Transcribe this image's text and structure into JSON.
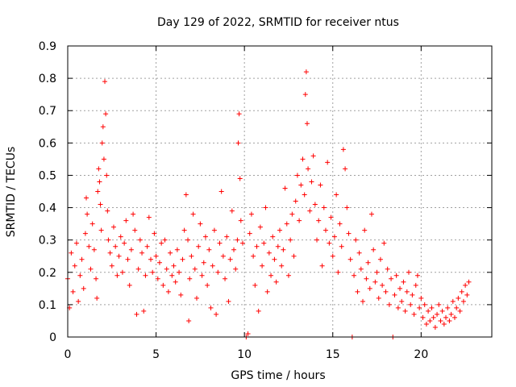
{
  "chart_data": {
    "type": "scatter",
    "title": "Day 129 of 2022, SRMTID for receiver ntus",
    "xlabel": "GPS time / hours",
    "ylabel": "SRMTID / TECUs",
    "xlim": [
      0,
      24
    ],
    "ylim": [
      0,
      0.9
    ],
    "xticks": [
      0,
      5,
      10,
      15,
      20
    ],
    "yticks": [
      0,
      0.1,
      0.2,
      0.3,
      0.4,
      0.5,
      0.6,
      0.7,
      0.8,
      0.9
    ],
    "xtick_labels": [
      "0",
      "5",
      "10",
      "15",
      "20"
    ],
    "ytick_labels": [
      "0",
      "0.1",
      "0.2",
      "0.3",
      "0.4",
      "0.5",
      "0.6",
      "0.7",
      "0.8",
      "0.9"
    ],
    "grid": true,
    "marker": "+",
    "color": "#ff0000",
    "series": [
      {
        "name": "SRMTID",
        "points": [
          [
            0.0,
            0.18
          ],
          [
            0.1,
            0.09
          ],
          [
            0.2,
            0.26
          ],
          [
            0.3,
            0.14
          ],
          [
            0.4,
            0.22
          ],
          [
            0.5,
            0.29
          ],
          [
            0.6,
            0.11
          ],
          [
            0.7,
            0.19
          ],
          [
            0.8,
            0.24
          ],
          [
            0.9,
            0.15
          ],
          [
            1.0,
            0.32
          ],
          [
            1.05,
            0.43
          ],
          [
            1.1,
            0.38
          ],
          [
            1.2,
            0.28
          ],
          [
            1.3,
            0.21
          ],
          [
            1.4,
            0.35
          ],
          [
            1.5,
            0.27
          ],
          [
            1.6,
            0.18
          ],
          [
            1.65,
            0.12
          ],
          [
            1.7,
            0.45
          ],
          [
            1.75,
            0.52
          ],
          [
            1.8,
            0.48
          ],
          [
            1.85,
            0.41
          ],
          [
            1.9,
            0.33
          ],
          [
            1.95,
            0.6
          ],
          [
            2.0,
            0.65
          ],
          [
            2.05,
            0.55
          ],
          [
            2.1,
            0.79
          ],
          [
            2.15,
            0.69
          ],
          [
            2.2,
            0.5
          ],
          [
            2.25,
            0.39
          ],
          [
            2.3,
            0.3
          ],
          [
            2.4,
            0.26
          ],
          [
            2.5,
            0.22
          ],
          [
            2.6,
            0.34
          ],
          [
            2.7,
            0.28
          ],
          [
            2.8,
            0.19
          ],
          [
            2.9,
            0.25
          ],
          [
            3.0,
            0.31
          ],
          [
            3.1,
            0.2
          ],
          [
            3.2,
            0.29
          ],
          [
            3.3,
            0.36
          ],
          [
            3.4,
            0.24
          ],
          [
            3.5,
            0.16
          ],
          [
            3.6,
            0.27
          ],
          [
            3.7,
            0.38
          ],
          [
            3.8,
            0.33
          ],
          [
            3.9,
            0.07
          ],
          [
            4.0,
            0.21
          ],
          [
            4.1,
            0.3
          ],
          [
            4.2,
            0.26
          ],
          [
            4.3,
            0.08
          ],
          [
            4.4,
            0.19
          ],
          [
            4.5,
            0.28
          ],
          [
            4.6,
            0.37
          ],
          [
            4.7,
            0.24
          ],
          [
            4.8,
            0.2
          ],
          [
            4.9,
            0.32
          ],
          [
            5.0,
            0.25
          ],
          [
            5.1,
            0.18
          ],
          [
            5.2,
            0.23
          ],
          [
            5.3,
            0.29
          ],
          [
            5.4,
            0.16
          ],
          [
            5.5,
            0.3
          ],
          [
            5.6,
            0.21
          ],
          [
            5.7,
            0.14
          ],
          [
            5.8,
            0.26
          ],
          [
            5.9,
            0.19
          ],
          [
            6.0,
            0.22
          ],
          [
            6.1,
            0.17
          ],
          [
            6.2,
            0.27
          ],
          [
            6.3,
            0.2
          ],
          [
            6.4,
            0.13
          ],
          [
            6.5,
            0.24
          ],
          [
            6.6,
            0.33
          ],
          [
            6.7,
            0.44
          ],
          [
            6.8,
            0.3
          ],
          [
            6.85,
            0.05
          ],
          [
            6.9,
            0.18
          ],
          [
            7.0,
            0.25
          ],
          [
            7.1,
            0.38
          ],
          [
            7.2,
            0.21
          ],
          [
            7.3,
            0.12
          ],
          [
            7.4,
            0.28
          ],
          [
            7.5,
            0.35
          ],
          [
            7.6,
            0.19
          ],
          [
            7.7,
            0.23
          ],
          [
            7.8,
            0.31
          ],
          [
            7.9,
            0.16
          ],
          [
            8.0,
            0.27
          ],
          [
            8.1,
            0.09
          ],
          [
            8.2,
            0.22
          ],
          [
            8.3,
            0.33
          ],
          [
            8.4,
            0.07
          ],
          [
            8.5,
            0.2
          ],
          [
            8.6,
            0.29
          ],
          [
            8.7,
            0.45
          ],
          [
            8.8,
            0.25
          ],
          [
            8.9,
            0.18
          ],
          [
            9.0,
            0.31
          ],
          [
            9.1,
            0.11
          ],
          [
            9.2,
            0.24
          ],
          [
            9.3,
            0.39
          ],
          [
            9.4,
            0.27
          ],
          [
            9.5,
            0.21
          ],
          [
            9.6,
            0.3
          ],
          [
            9.65,
            0.6
          ],
          [
            9.7,
            0.69
          ],
          [
            9.75,
            0.49
          ],
          [
            9.8,
            0.36
          ],
          [
            9.9,
            0.29
          ],
          [
            10.1,
            0.0
          ],
          [
            10.2,
            0.01
          ],
          [
            10.3,
            0.32
          ],
          [
            10.4,
            0.38
          ],
          [
            10.5,
            0.25
          ],
          [
            10.6,
            0.16
          ],
          [
            10.7,
            0.28
          ],
          [
            10.8,
            0.08
          ],
          [
            10.9,
            0.34
          ],
          [
            11.0,
            0.22
          ],
          [
            11.1,
            0.29
          ],
          [
            11.2,
            0.4
          ],
          [
            11.3,
            0.14
          ],
          [
            11.4,
            0.26
          ],
          [
            11.5,
            0.19
          ],
          [
            11.6,
            0.31
          ],
          [
            11.7,
            0.24
          ],
          [
            11.8,
            0.17
          ],
          [
            11.9,
            0.28
          ],
          [
            12.0,
            0.33
          ],
          [
            12.1,
            0.22
          ],
          [
            12.2,
            0.27
          ],
          [
            12.3,
            0.46
          ],
          [
            12.4,
            0.35
          ],
          [
            12.5,
            0.19
          ],
          [
            12.6,
            0.3
          ],
          [
            12.7,
            0.38
          ],
          [
            12.8,
            0.25
          ],
          [
            12.9,
            0.42
          ],
          [
            13.0,
            0.5
          ],
          [
            13.1,
            0.36
          ],
          [
            13.2,
            0.47
          ],
          [
            13.3,
            0.55
          ],
          [
            13.4,
            0.44
          ],
          [
            13.45,
            0.75
          ],
          [
            13.5,
            0.82
          ],
          [
            13.55,
            0.66
          ],
          [
            13.6,
            0.52
          ],
          [
            13.7,
            0.39
          ],
          [
            13.8,
            0.48
          ],
          [
            13.9,
            0.56
          ],
          [
            14.0,
            0.41
          ],
          [
            14.1,
            0.3
          ],
          [
            14.2,
            0.36
          ],
          [
            14.3,
            0.47
          ],
          [
            14.4,
            0.22
          ],
          [
            14.5,
            0.4
          ],
          [
            14.6,
            0.33
          ],
          [
            14.7,
            0.54
          ],
          [
            14.8,
            0.29
          ],
          [
            14.9,
            0.37
          ],
          [
            15.0,
            0.25
          ],
          [
            15.1,
            0.31
          ],
          [
            15.2,
            0.44
          ],
          [
            15.3,
            0.2
          ],
          [
            15.4,
            0.35
          ],
          [
            15.5,
            0.28
          ],
          [
            15.6,
            0.58
          ],
          [
            15.7,
            0.52
          ],
          [
            15.8,
            0.4
          ],
          [
            15.9,
            0.32
          ],
          [
            16.0,
            0.24
          ],
          [
            16.1,
            0.0
          ],
          [
            16.2,
            0.19
          ],
          [
            16.3,
            0.3
          ],
          [
            16.4,
            0.14
          ],
          [
            16.5,
            0.26
          ],
          [
            16.6,
            0.21
          ],
          [
            16.7,
            0.11
          ],
          [
            16.8,
            0.33
          ],
          [
            16.9,
            0.18
          ],
          [
            17.0,
            0.23
          ],
          [
            17.1,
            0.15
          ],
          [
            17.2,
            0.38
          ],
          [
            17.3,
            0.27
          ],
          [
            17.4,
            0.17
          ],
          [
            17.5,
            0.2
          ],
          [
            17.6,
            0.12
          ],
          [
            17.7,
            0.24
          ],
          [
            17.8,
            0.16
          ],
          [
            17.9,
            0.29
          ],
          [
            18.0,
            0.14
          ],
          [
            18.1,
            0.21
          ],
          [
            18.2,
            0.1
          ],
          [
            18.3,
            0.18
          ],
          [
            18.4,
            0.0
          ],
          [
            18.5,
            0.13
          ],
          [
            18.6,
            0.19
          ],
          [
            18.7,
            0.09
          ],
          [
            18.8,
            0.15
          ],
          [
            18.9,
            0.11
          ],
          [
            19.0,
            0.17
          ],
          [
            19.1,
            0.08
          ],
          [
            19.2,
            0.14
          ],
          [
            19.3,
            0.2
          ],
          [
            19.4,
            0.1
          ],
          [
            19.5,
            0.13
          ],
          [
            19.6,
            0.07
          ],
          [
            19.7,
            0.16
          ],
          [
            19.8,
            0.19
          ],
          [
            19.9,
            0.09
          ],
          [
            20.0,
            0.12
          ],
          [
            20.1,
            0.06
          ],
          [
            20.2,
            0.1
          ],
          [
            20.3,
            0.04
          ],
          [
            20.4,
            0.08
          ],
          [
            20.5,
            0.05
          ],
          [
            20.6,
            0.09
          ],
          [
            20.7,
            0.06
          ],
          [
            20.8,
            0.03
          ],
          [
            20.9,
            0.07
          ],
          [
            21.0,
            0.1
          ],
          [
            21.1,
            0.05
          ],
          [
            21.2,
            0.08
          ],
          [
            21.3,
            0.04
          ],
          [
            21.4,
            0.06
          ],
          [
            21.5,
            0.09
          ],
          [
            21.6,
            0.05
          ],
          [
            21.7,
            0.07
          ],
          [
            21.8,
            0.11
          ],
          [
            21.9,
            0.06
          ],
          [
            22.0,
            0.09
          ],
          [
            22.1,
            0.12
          ],
          [
            22.2,
            0.08
          ],
          [
            22.3,
            0.14
          ],
          [
            22.4,
            0.11
          ],
          [
            22.5,
            0.16
          ],
          [
            22.6,
            0.13
          ],
          [
            22.7,
            0.17
          ]
        ]
      }
    ]
  }
}
